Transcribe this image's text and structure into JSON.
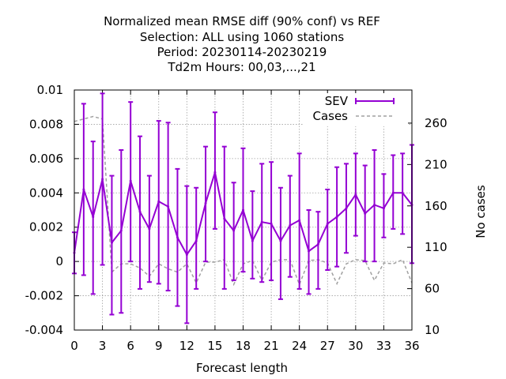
{
  "chart_data": {
    "type": "line",
    "title": [
      "Normalized mean RMSE diff (90% conf) vs REF",
      "Selection: ALL using  1060 stations",
      "Period: 20230114-20230219",
      "Td2m   Hours:  00,03,...,21"
    ],
    "xlabel": "Forecast length",
    "ylabel": "",
    "y2label": "No cases",
    "xlim": [
      0,
      36
    ],
    "ylim": [
      -0.004,
      0.01
    ],
    "y2lim": [
      10,
      300
    ],
    "xticks": [
      0,
      3,
      6,
      9,
      12,
      15,
      18,
      21,
      24,
      27,
      30,
      33,
      36
    ],
    "yticks": [
      -0.004,
      -0.002,
      0,
      0.002,
      0.004,
      0.006,
      0.008,
      0.01
    ],
    "ytick_labels": [
      "-0.004",
      "-0.002",
      "0",
      "0.002",
      "0.004",
      "0.006",
      "0.008",
      "0.01"
    ],
    "y2ticks": [
      10,
      60,
      110,
      160,
      210,
      260
    ],
    "grid": true,
    "legend_position": "top-right",
    "x": [
      0,
      1,
      2,
      3,
      4,
      5,
      6,
      7,
      8,
      9,
      10,
      11,
      12,
      13,
      14,
      15,
      16,
      17,
      18,
      19,
      20,
      21,
      22,
      23,
      24,
      25,
      26,
      27,
      28,
      29,
      30,
      31,
      32,
      33,
      34,
      35,
      36
    ],
    "series": [
      {
        "name": "SEV",
        "axis": "y",
        "color": "#9400d3",
        "style": "errorlines",
        "values": [
          0.0005,
          0.0042,
          0.0026,
          0.0048,
          0.0011,
          0.0018,
          0.0047,
          0.0029,
          0.0019,
          0.0035,
          0.0032,
          0.0014,
          0.0004,
          0.0012,
          0.0034,
          0.0052,
          0.0025,
          0.0018,
          0.003,
          0.0012,
          0.0023,
          0.0022,
          0.0012,
          0.0021,
          0.0024,
          0.0006,
          0.001,
          0.0022,
          0.0026,
          0.0031,
          0.0039,
          0.0028,
          0.0033,
          0.0031,
          0.004,
          0.004,
          0.0033
        ],
        "lower": [
          -0.0007,
          -0.0008,
          -0.0019,
          -0.0002,
          -0.0031,
          -0.003,
          0.0,
          -0.0016,
          -0.0012,
          -0.0013,
          -0.0017,
          -0.0026,
          -0.0036,
          -0.0016,
          0.0,
          0.0019,
          -0.0016,
          -0.0011,
          -0.0006,
          -0.001,
          -0.0012,
          -0.0011,
          -0.0022,
          -0.0009,
          -0.0016,
          -0.0019,
          -0.0016,
          -0.0005,
          -0.0003,
          0.0005,
          0.0015,
          0.0,
          0.0,
          0.0014,
          0.0019,
          0.0016,
          -0.0001
        ],
        "upper": [
          0.0017,
          0.0092,
          0.007,
          0.0098,
          0.005,
          0.0065,
          0.0093,
          0.0073,
          0.005,
          0.0082,
          0.0081,
          0.0054,
          0.0044,
          0.0043,
          0.0067,
          0.0087,
          0.0067,
          0.0046,
          0.0066,
          0.0041,
          0.0057,
          0.0058,
          0.0043,
          0.005,
          0.0063,
          0.003,
          0.0029,
          0.0042,
          0.0055,
          0.0057,
          0.0063,
          0.0056,
          0.0065,
          0.0051,
          0.0062,
          0.0063,
          0.0068
        ]
      },
      {
        "name": "Cases",
        "axis": "y2",
        "color": "#a0a0a0",
        "style": "dashed",
        "values": [
          262,
          265,
          268,
          265,
          80,
          90,
          90,
          85,
          75,
          90,
          84,
          80,
          90,
          67,
          92,
          92,
          95,
          65,
          90,
          94,
          70,
          92,
          95,
          95,
          65,
          94,
          95,
          91,
          66,
          90,
          95,
          94,
          70,
          91,
          90,
          95,
          67
        ]
      }
    ]
  }
}
